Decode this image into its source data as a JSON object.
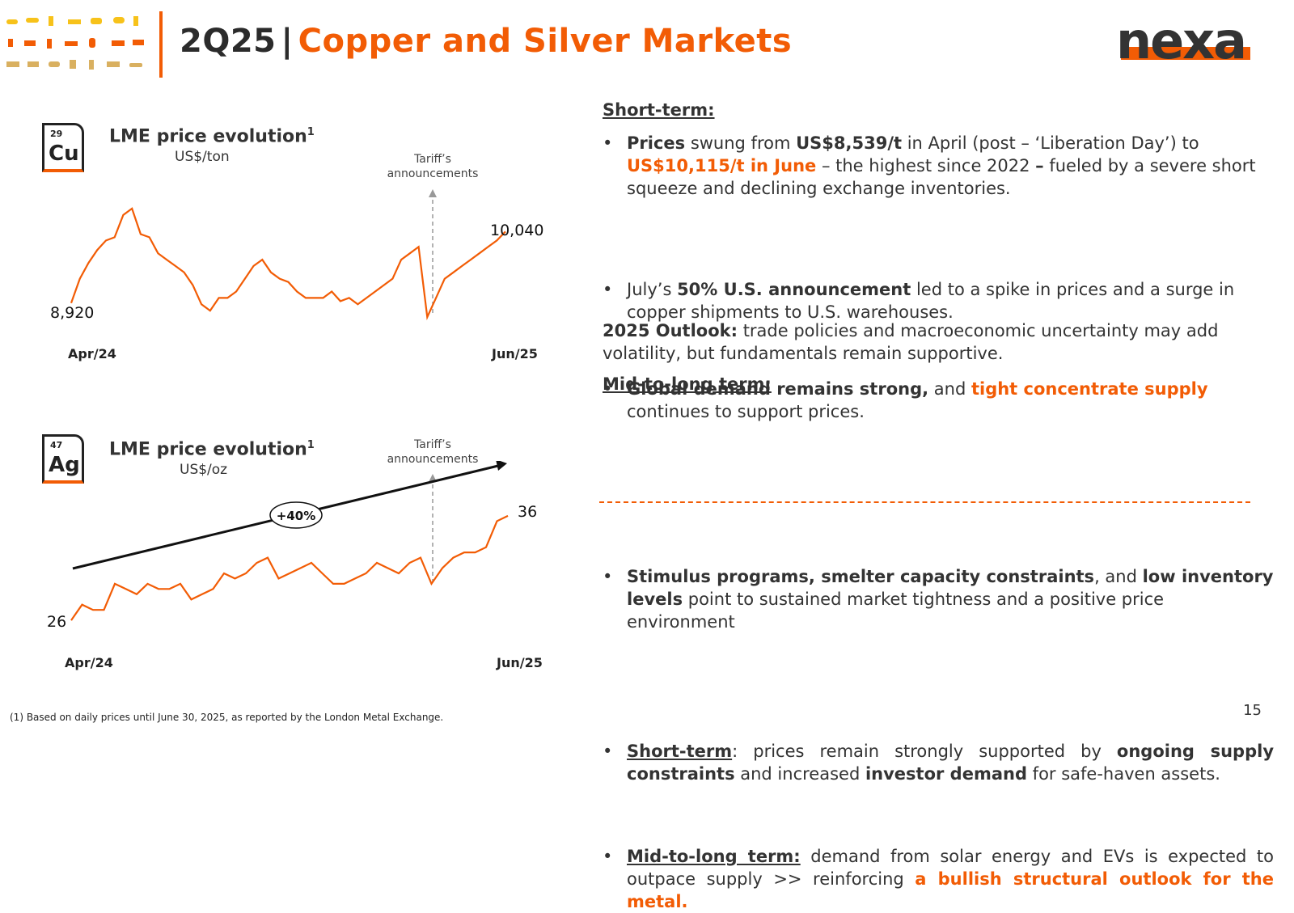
{
  "header": {
    "period": "2Q25",
    "separator": "|",
    "title": "Copper and Silver Markets",
    "logo": "nexa",
    "accent_color": "#f25c05"
  },
  "copper_chart": {
    "element_number": "29",
    "element_symbol": "Cu",
    "title": "LME price evolution",
    "title_sup": "1",
    "unit": "US$/ton",
    "annotation": "Tariff’s\nannouncements",
    "annotation_line1": "Tariff’s",
    "annotation_line2": "announcements",
    "start_label": "8,920",
    "end_label": "10,040",
    "x_start": "Apr/24",
    "x_end": "Jun/25"
  },
  "silver_chart": {
    "element_number": "47",
    "element_symbol": "Ag",
    "title": "LME price evolution",
    "title_sup": "1",
    "unit": "US$/oz",
    "annotation_line1": "Tariff’s",
    "annotation_line2": "announcements",
    "trend_label": "+40%",
    "start_label": "26",
    "end_label": "36",
    "x_start": "Apr/24",
    "x_end": "Jun/25"
  },
  "chart_data": [
    {
      "type": "line",
      "title": "LME price evolution",
      "ylabel": "US$/ton",
      "x_start": "Apr/24",
      "x_end": "Jun/25",
      "series": [
        {
          "values": [
            8920,
            9300,
            9550,
            9750,
            9900,
            9950,
            10300,
            10400,
            10000,
            9950,
            9700,
            9600,
            9500,
            9400,
            9200,
            8900,
            8800,
            9000,
            9000,
            9100,
            9300,
            9500,
            9600,
            9400,
            9300,
            9250,
            9100,
            9000,
            9000,
            9000,
            9100,
            8950,
            9000,
            8900,
            9000,
            9100,
            9200,
            9300,
            9600,
            9700,
            9800,
            8700,
            9000,
            9300,
            9400,
            9500,
            9600,
            9700,
            9800,
            9900,
            10040
          ]
        }
      ],
      "start_label": "8,920",
      "end_label": "10,040",
      "annotation": "Tariff’s announcements"
    },
    {
      "type": "line",
      "title": "LME price evolution",
      "ylabel": "US$/oz",
      "x_start": "Apr/24",
      "x_end": "Jun/25",
      "series": [
        {
          "values": [
            26,
            27.5,
            27,
            27,
            29.5,
            29,
            28.5,
            29.5,
            29,
            29,
            29.5,
            28,
            28.5,
            29,
            30.5,
            30,
            30.5,
            31.5,
            32,
            30,
            30.5,
            31,
            31.5,
            30.5,
            29.5,
            29.5,
            30,
            30.5,
            31.5,
            31,
            30.5,
            31.5,
            32,
            29.5,
            31,
            32,
            32.5,
            32.5,
            33,
            35.5,
            36
          ]
        }
      ],
      "start_label": "26",
      "end_label": "36",
      "trend_label": "+40%",
      "annotation": "Tariff’s announcements"
    }
  ],
  "copper_text": {
    "short_term_heading": "Short-term:",
    "b1_p1": "Prices",
    "b1_p2": " swung from ",
    "b1_p3": "US$8,539/t",
    "b1_p4": " in April (post – ‘Liberation Day’) to ",
    "b1_p5": "US$10,115/t in June",
    "b1_p6": " – the highest since 2022 ",
    "b1_p7": "–",
    "b1_p8": " fueled by a severe short squeeze and declining exchange inventories.",
    "b2_p1": "July’s ",
    "b2_p2": "50% U.S. announcement",
    "b2_p3": " led to a spike in prices and a surge in copper shipments to U.S. warehouses.",
    "b3_p1": "Global demand remains strong,",
    "b3_p2": " and ",
    "b3_p3": "tight concentrate supply",
    "b3_p4": " continues to support prices.",
    "outlook_label": "2025 Outlook:",
    "outlook_text": " trade policies and macroeconomic uncertainty may add volatility, but fundamentals remain supportive.",
    "mid_heading": "Mid-to-long term:",
    "b4_p1": "Stimulus programs, smelter capacity constraints",
    "b4_p2": ", and ",
    "b4_p3": "low inventory levels",
    "b4_p4": " point to sustained market tightness and a positive price environment"
  },
  "silver_text": {
    "b1_label": "Short-term",
    "b1_p1": ": prices remain strongly supported by ",
    "b1_p2": "ongoing supply constraints",
    "b1_p3": " and increased ",
    "b1_p4": "investor demand",
    "b1_p5": " for safe-haven assets.",
    "b2_label": "Mid-to-long term:",
    "b2_p1": " demand from solar energy and EVs is expected to outpace supply >> reinforcing ",
    "b2_p2": "a bullish structural outlook for the metal."
  },
  "bullet": "•",
  "footnote": "(1) Based on daily prices until June 30, 2025, as reported by the London Metal Exchange.",
  "page_number": "15"
}
